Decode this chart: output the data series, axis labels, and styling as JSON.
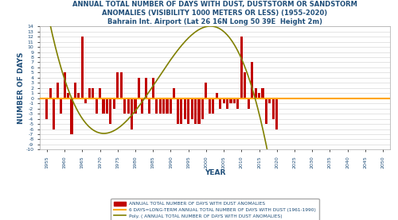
{
  "title_line1": "ANNUAL TOTAL NUMBER OF DAYS WITH DUST, DUSTSTORM OR SANDSTORM",
  "title_line2": "ANOMALIES (VISIBILITY 1000 METERS OR LESS) (1955-2020)",
  "title_line3": "Bahrain Int. Airport (Lat 26 16N Long 50 39E  Height 2m)",
  "xlabel": "YEAR",
  "ylabel": "NUMBER OF DAYS",
  "bar_color": "#C00000",
  "longterm_color": "#FFA500",
  "poly_color": "#808000",
  "background_color": "#FFFFFF",
  "ylim": [
    -10,
    14
  ],
  "xlim": [
    1953,
    2052
  ],
  "xticks": [
    1955,
    1960,
    1965,
    1970,
    1975,
    1980,
    1985,
    1990,
    1995,
    2000,
    2005,
    2010,
    2015,
    2020,
    2025,
    2030,
    2035,
    2040,
    2045,
    2050
  ],
  "yticks": [
    -10,
    -9,
    -8,
    -7,
    -6,
    -5,
    -4,
    -3,
    -2,
    -1,
    0,
    1,
    2,
    3,
    4,
    5,
    6,
    7,
    8,
    9,
    10,
    11,
    12,
    13,
    14
  ],
  "longterm_value": 0.0,
  "longterm_mean": 6.0,
  "poly_coeffs": [
    -0.0015266,
    0.14270187,
    -3.40629514,
    23.37330517
  ],
  "poly_x0": 1955,
  "poly_xstart": 1955,
  "poly_xend": 2050,
  "legend_labels": [
    "ANNUAL TOTAL NUMBER OF DAYS WITH DUST ANOMALIES",
    "6 DAYS=LONG-TERM ANNUAL TOTAL NUMBER OF DAYS WITH DUST (1961-1990)",
    "Poly. ( ANNUAL TOTAL NUMBER OF DAYS WITH DUST ANOMALIES)"
  ],
  "years": [
    1955,
    1956,
    1957,
    1958,
    1959,
    1960,
    1961,
    1962,
    1963,
    1964,
    1965,
    1966,
    1967,
    1968,
    1969,
    1970,
    1971,
    1972,
    1973,
    1974,
    1975,
    1976,
    1977,
    1978,
    1979,
    1980,
    1981,
    1982,
    1983,
    1984,
    1985,
    1986,
    1987,
    1988,
    1989,
    1990,
    1991,
    1992,
    1993,
    1994,
    1995,
    1996,
    1997,
    1998,
    1999,
    2000,
    2001,
    2002,
    2003,
    2004,
    2005,
    2006,
    2007,
    2008,
    2009,
    2010,
    2011,
    2012,
    2013,
    2014,
    2015,
    2016,
    2017,
    2018,
    2019,
    2020
  ],
  "anomalies": [
    -4,
    2,
    -6,
    3,
    -3,
    5,
    1,
    -7,
    3,
    1,
    12,
    -1,
    2,
    2,
    -3,
    2,
    -3,
    -3,
    -5,
    -2,
    5,
    5,
    -3,
    -3,
    -6,
    -3,
    4,
    -3,
    4,
    -3,
    4,
    -3,
    -3,
    -3,
    -3,
    -3,
    2,
    -5,
    -5,
    -4,
    -5,
    -4,
    -5,
    -5,
    -4,
    3,
    -3,
    -3,
    1,
    -2,
    -1,
    -2,
    -1,
    -1,
    -2,
    12,
    5,
    -2,
    7,
    2,
    1,
    2,
    -5,
    -1,
    -4,
    -6
  ],
  "title_fontsize": 6.0,
  "tick_fontsize": 4.5,
  "axis_label_fontsize": 6.5,
  "legend_fontsize": 4.2,
  "bar_width": 0.7,
  "grid_color": "#D0D0D0",
  "tick_color": "#1F4E79",
  "title_color": "#1F4E79",
  "axis_label_color": "#1F4E79"
}
